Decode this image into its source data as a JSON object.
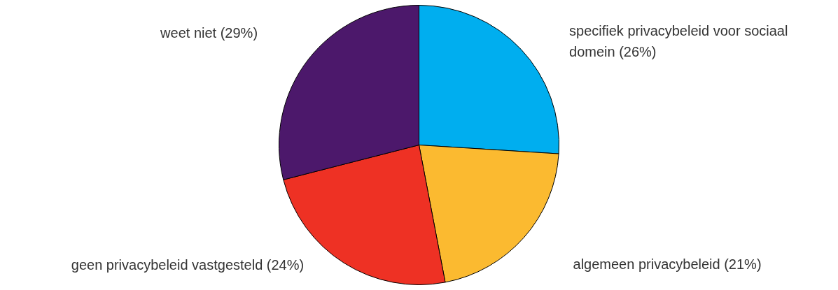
{
  "chart_data": {
    "type": "pie",
    "categories": [
      "specifiek privacybeleid voor sociaal domein (26%)",
      "algemeen privacybeleid (21%)",
      "geen privacybeleid vastgesteld (24%)",
      "weet niet (29%)"
    ],
    "values": [
      26,
      21,
      24,
      29
    ],
    "colors": [
      "#00aeef",
      "#fbba30",
      "#ee3124",
      "#4c186b"
    ]
  }
}
